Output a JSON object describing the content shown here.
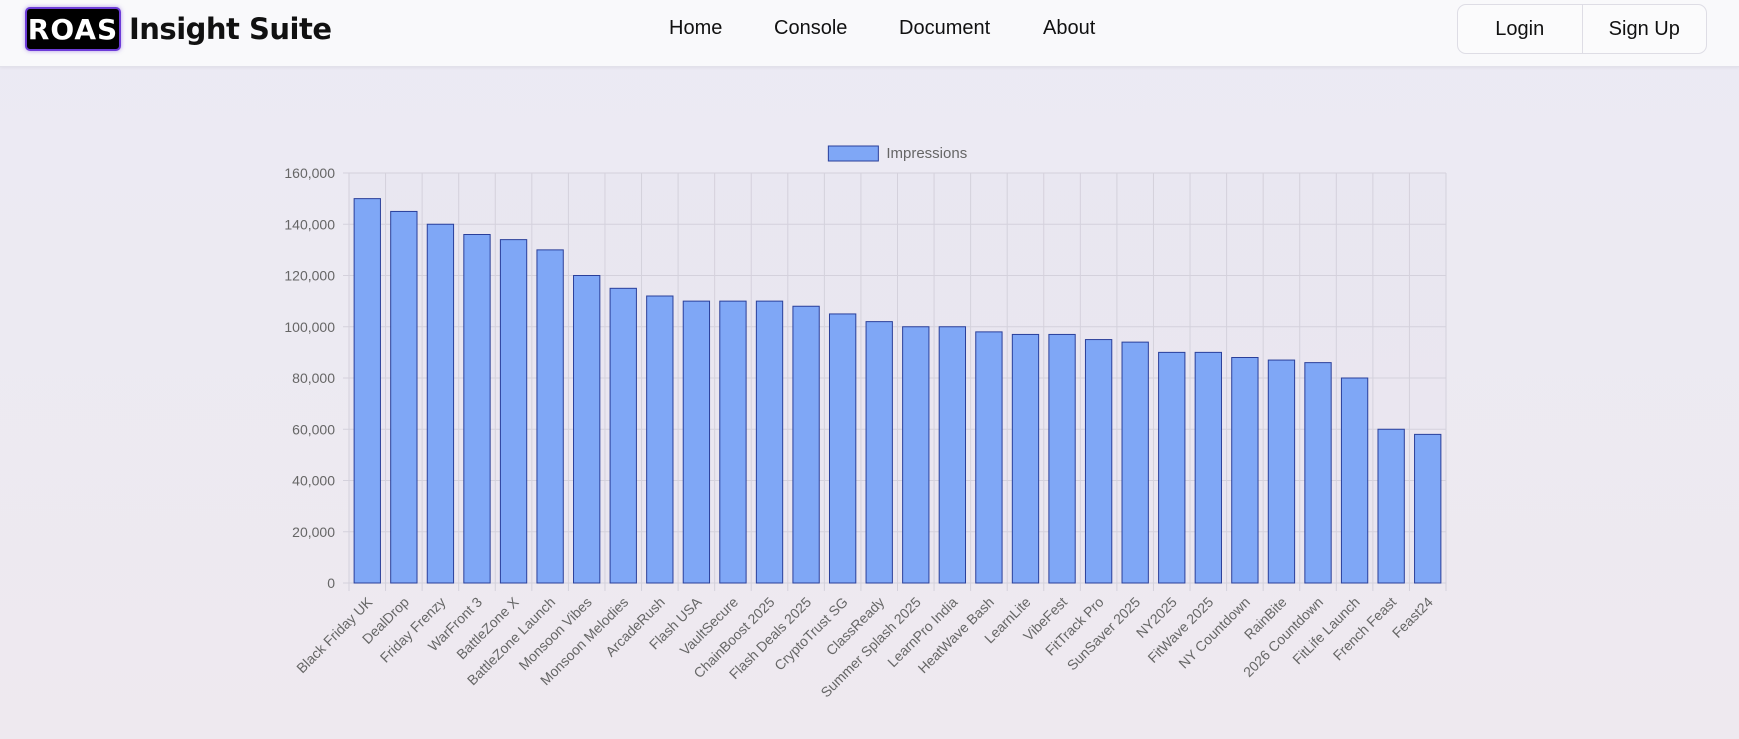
{
  "brand": {
    "logo_text": "ROAS",
    "title": "Insight Suite"
  },
  "nav": {
    "items": [
      "Home",
      "Console",
      "Document",
      "About"
    ]
  },
  "auth": {
    "login": "Login",
    "signup": "Sign Up"
  },
  "colors": {
    "bar_fill": "#7fa7f6",
    "bar_stroke": "#2a3f9a",
    "grid": "#d4d1dc",
    "axis_text": "#666666"
  },
  "chart_data": {
    "type": "bar",
    "legend": "Impressions",
    "legend_position": "top",
    "grid": true,
    "ylim": [
      0,
      160000
    ],
    "ytick_step": 20000,
    "categories": [
      "Black Friday UK",
      "DealDrop",
      "Friday Frenzy",
      "WarFront 3",
      "BattleZone X",
      "BattleZone Launch",
      "Monsoon Vibes",
      "Monsoon Melodies",
      "ArcadeRush",
      "Flash USA",
      "VaultSecure",
      "ChainBoost 2025",
      "Flash Deals 2025",
      "CryptoTrust SG",
      "ClassReady",
      "Summer Splash 2025",
      "LearnPro India",
      "HeatWave Bash",
      "LearnLite",
      "VibeFest",
      "FitTrack Pro",
      "SunSaver 2025",
      "NY2025",
      "FitWave 2025",
      "NY Countdown",
      "RainBite",
      "2026 Countdown",
      "FitLife Launch",
      "French Feast",
      "Feast24"
    ],
    "series": [
      {
        "name": "Impressions",
        "values": [
          150000,
          145000,
          140000,
          136000,
          134000,
          130000,
          120000,
          115000,
          112000,
          110000,
          110000,
          110000,
          108000,
          105000,
          102000,
          100000,
          100000,
          98000,
          97000,
          97000,
          95000,
          94000,
          90000,
          90000,
          88000,
          87000,
          86000,
          80000,
          60000,
          58000
        ]
      }
    ]
  }
}
